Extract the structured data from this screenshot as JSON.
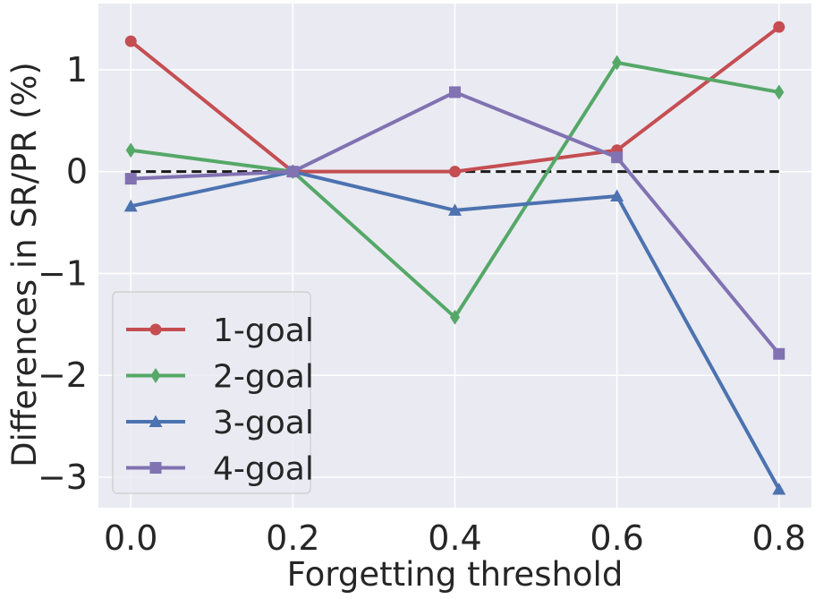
{
  "chart_data": {
    "type": "line",
    "title": "",
    "xlabel": "Forgetting threshold",
    "ylabel": "Differences in SR/PR (%)",
    "x": [
      0.0,
      0.2,
      0.4,
      0.6,
      0.8
    ],
    "xlim": [
      -0.04,
      0.84
    ],
    "ylim": [
      -3.3,
      1.65
    ],
    "x_ticks": [
      0.0,
      0.2,
      0.4,
      0.6,
      0.8
    ],
    "x_tick_labels": [
      "0.0",
      "0.2",
      "0.4",
      "0.6",
      "0.8"
    ],
    "y_ticks": [
      1,
      0,
      -1,
      -2,
      -3
    ],
    "y_tick_labels": [
      "1",
      "0",
      "−1",
      "−2",
      "−3"
    ],
    "grid": true,
    "reference_line": {
      "y": 0,
      "style": "dashed",
      "color": "#1a1a1a"
    },
    "legend": {
      "position": "bottom-left"
    },
    "background_color": "#eaeaf2",
    "series": [
      {
        "name": "1-goal",
        "color": "#c44e52",
        "marker": "circle",
        "values": [
          1.28,
          0.0,
          0.0,
          0.21,
          1.42
        ]
      },
      {
        "name": "2-goal",
        "color": "#55a868",
        "marker": "diamond",
        "values": [
          0.21,
          0.0,
          -1.43,
          1.07,
          0.78
        ]
      },
      {
        "name": "3-goal",
        "color": "#4c72b0",
        "marker": "triangle",
        "values": [
          -0.34,
          0.0,
          -0.38,
          -0.24,
          -3.12
        ]
      },
      {
        "name": "4-goal",
        "color": "#8172b2",
        "marker": "square",
        "values": [
          -0.07,
          0.0,
          0.78,
          0.14,
          -1.79
        ]
      }
    ]
  }
}
